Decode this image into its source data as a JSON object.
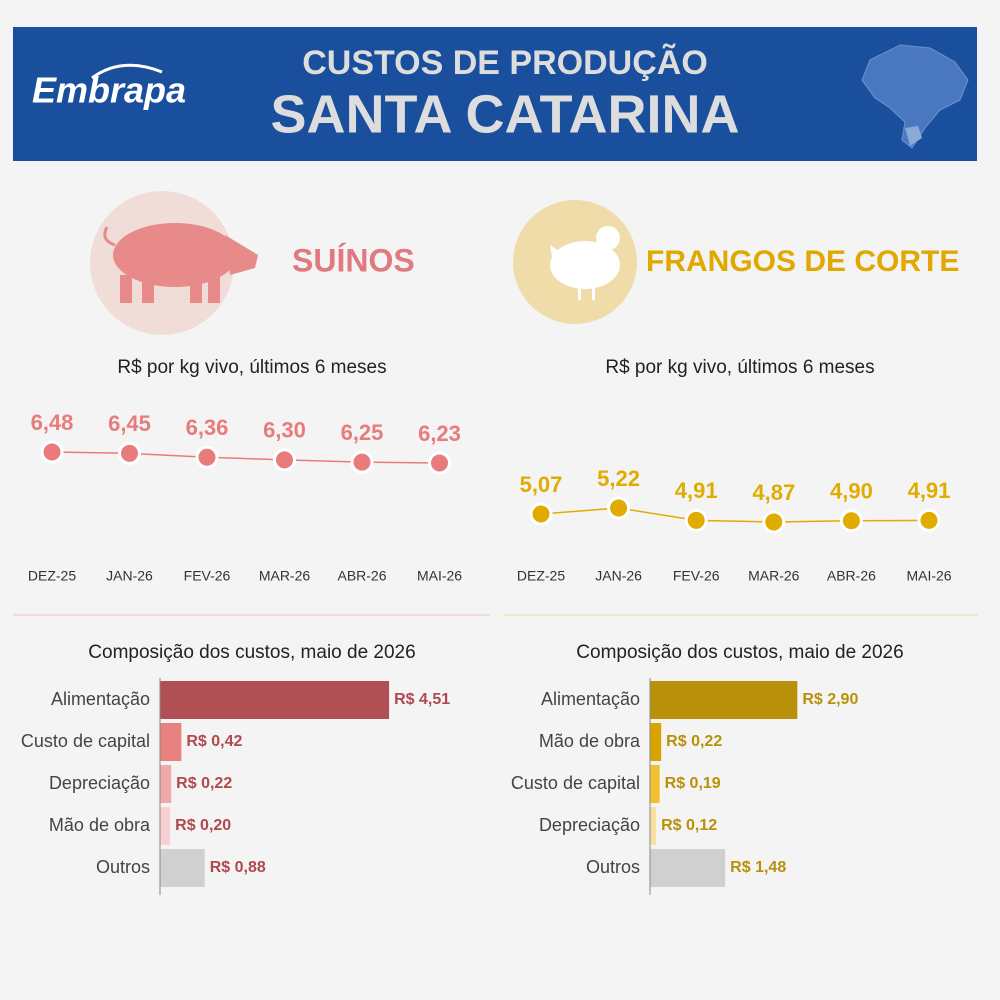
{
  "header": {
    "logo": "Embrapa",
    "title": "CUSTOS DE PRODUÇÃO",
    "subtitle": "SANTA CATARINA"
  },
  "sections": [
    {
      "title": "SUÍNOS",
      "color": "#e07a80"
    },
    {
      "title": "FRANGOS DE CORTE",
      "color": "#e0a800"
    }
  ],
  "chart_data": [
    {
      "type": "line",
      "subtitle": "R$ por kg vivo, últimos 6 meses",
      "color": "#e87c7c",
      "categories": [
        "DEZ-25",
        "JAN-26",
        "FEV-26",
        "MAR-26",
        "ABR-26",
        "MAI-26"
      ],
      "values": [
        6.48,
        6.45,
        6.36,
        6.3,
        6.25,
        6.23
      ],
      "value_labels": [
        "6,48",
        "6,45",
        "6,36",
        "6,30",
        "6,25",
        "6,23"
      ]
    },
    {
      "type": "line",
      "subtitle": "R$ por kg vivo, últimos 6 meses",
      "color": "#e0ac00",
      "categories": [
        "DEZ-25",
        "JAN-26",
        "FEV-26",
        "MAR-26",
        "ABR-26",
        "MAI-26"
      ],
      "values": [
        5.07,
        5.22,
        4.91,
        4.87,
        4.9,
        4.91
      ],
      "value_labels": [
        "5,07",
        "5,22",
        "4,91",
        "4,87",
        "4,90",
        "4,91"
      ]
    },
    {
      "type": "hbar",
      "subtitle": "Composição dos custos, maio de 2026",
      "label_color": "#b0484e",
      "categories": [
        "Alimentação",
        "Custo de capital",
        "Depreciação",
        "Mão de obra",
        "Outros"
      ],
      "values": [
        4.51,
        0.42,
        0.22,
        0.2,
        0.88
      ],
      "value_labels": [
        "R$ 4,51",
        "R$ 0,42",
        "R$ 0,22",
        "R$ 0,20",
        "R$ 0,88"
      ],
      "colors": [
        "#b05055",
        "#e88080",
        "#f0a8aa",
        "#f8d0d2",
        "#d0d0d0"
      ]
    },
    {
      "type": "hbar",
      "subtitle": "Composição dos custos, maio de 2026",
      "label_color": "#b8900a",
      "categories": [
        "Alimentação",
        "Mão de obra",
        "Custo de capital",
        "Depreciação",
        "Outros"
      ],
      "values": [
        2.9,
        0.22,
        0.19,
        0.12,
        1.48
      ],
      "value_labels": [
        "R$ 2,90",
        "R$ 0,22",
        "R$ 0,19",
        "R$ 0,12",
        "R$ 1,48"
      ],
      "colors": [
        "#b8900a",
        "#d9a400",
        "#f0c030",
        "#f8e0a0",
        "#d0d0d0"
      ]
    }
  ]
}
